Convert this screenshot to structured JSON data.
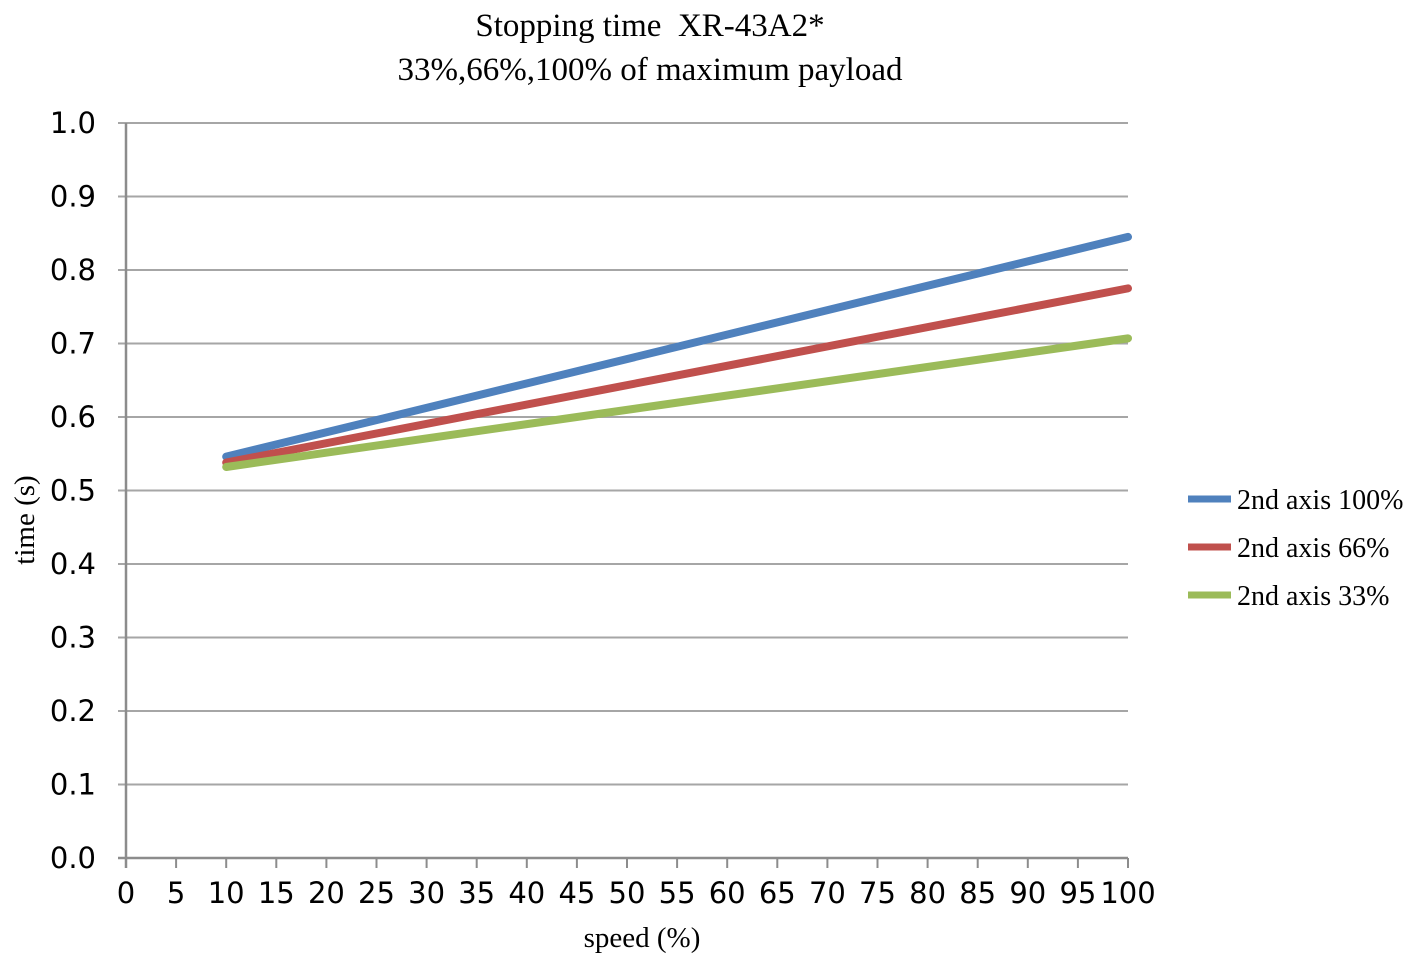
{
  "chart_data": {
    "type": "line",
    "title": "Stopping time  XR-43A2*",
    "subtitle": "33%,66%,100% of maximum payload",
    "xlabel": "speed (%)",
    "ylabel": "time (s)",
    "xlim": [
      0,
      100
    ],
    "ylim": [
      0.0,
      1.0
    ],
    "x_ticks": [
      0,
      5,
      10,
      15,
      20,
      25,
      30,
      35,
      40,
      45,
      50,
      55,
      60,
      65,
      70,
      75,
      80,
      85,
      90,
      95,
      100
    ],
    "x_tick_labels": [
      "0",
      "5",
      "10",
      "15",
      "20",
      "25",
      "30",
      "35",
      "40",
      "45",
      "50",
      "55",
      "60",
      "65",
      "70",
      "75",
      "80",
      "85",
      "90",
      "95",
      "100"
    ],
    "y_ticks": [
      0.0,
      0.1,
      0.2,
      0.3,
      0.4,
      0.5,
      0.6,
      0.7,
      0.8,
      0.9,
      1.0
    ],
    "y_tick_labels": [
      "0.0",
      "0.1",
      "0.2",
      "0.3",
      "0.4",
      "0.5",
      "0.6",
      "0.7",
      "0.8",
      "0.9",
      "1.0"
    ],
    "grid": "horizontal-only",
    "legend_position": "right",
    "series": [
      {
        "name": "2nd axis 100%",
        "color": "#4F81BD",
        "x": [
          10,
          100
        ],
        "y": [
          0.546,
          0.845
        ]
      },
      {
        "name": "2nd axis 66%",
        "color": "#C0504D",
        "x": [
          10,
          100
        ],
        "y": [
          0.538,
          0.775
        ]
      },
      {
        "name": "2nd axis 33%",
        "color": "#9BBB59",
        "x": [
          10,
          100
        ],
        "y": [
          0.532,
          0.707
        ]
      }
    ],
    "styles": {
      "gridline_color": "#A6A6A6",
      "axis_color": "#8C8C8C",
      "text_color": "#000000",
      "background": "#FFFFFF",
      "series_line_width": 8
    }
  }
}
